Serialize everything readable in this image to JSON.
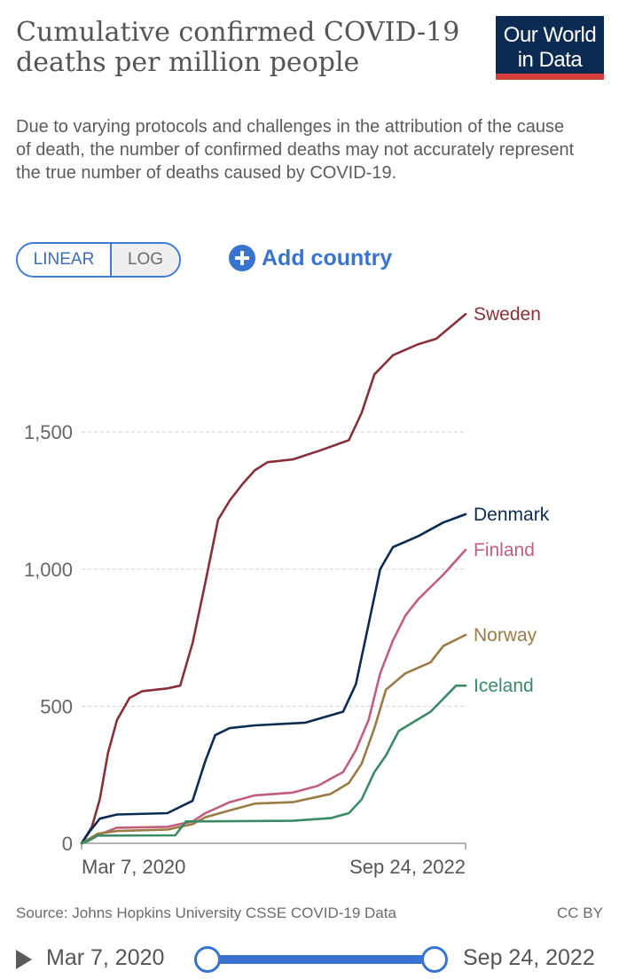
{
  "header": {
    "title": "Cumulative confirmed COVID-19 deaths per million people",
    "subtitle": "Due to varying protocols and challenges in the attribution of the cause of death, the number of confirmed deaths may not accurately represent the true number of deaths caused by COVID-19.",
    "logo_text": "Our World in Data",
    "logo_color": "#0b2b52",
    "logo_accent": "#d1403a"
  },
  "controls": {
    "scale_linear": "LINEAR",
    "scale_log": "LOG",
    "selected_scale": "LINEAR",
    "add_country": "Add country"
  },
  "chart_data": {
    "type": "line",
    "x_start": "Mar 7, 2020",
    "x_end": "Sep 24, 2022",
    "x_ticks": [
      "Mar 7, 2020",
      "Sep 24, 2022"
    ],
    "y_ticks": [
      0,
      500,
      1000,
      1500
    ],
    "y_tick_labels": [
      "0",
      "500",
      "1,000",
      "1,500"
    ],
    "ylim": [
      0,
      1950
    ],
    "grid": "horizontal dashed",
    "legend": "labels at line ends",
    "series": [
      {
        "name": "Sweden",
        "color": "#883039",
        "points": [
          [
            "2020-03-07",
            0
          ],
          [
            "2020-04-01",
            60
          ],
          [
            "2020-04-20",
            160
          ],
          [
            "2020-05-10",
            330
          ],
          [
            "2020-06-01",
            450
          ],
          [
            "2020-07-01",
            530
          ],
          [
            "2020-08-01",
            555
          ],
          [
            "2020-10-01",
            565
          ],
          [
            "2020-11-01",
            575
          ],
          [
            "2020-12-01",
            730
          ],
          [
            "2021-01-01",
            950
          ],
          [
            "2021-02-01",
            1180
          ],
          [
            "2021-03-01",
            1250
          ],
          [
            "2021-04-01",
            1310
          ],
          [
            "2021-05-01",
            1360
          ],
          [
            "2021-06-01",
            1390
          ],
          [
            "2021-08-01",
            1400
          ],
          [
            "2021-10-01",
            1430
          ],
          [
            "2021-12-15",
            1470
          ],
          [
            "2022-01-15",
            1570
          ],
          [
            "2022-02-15",
            1710
          ],
          [
            "2022-04-01",
            1780
          ],
          [
            "2022-06-01",
            1820
          ],
          [
            "2022-07-15",
            1840
          ],
          [
            "2022-09-24",
            1930
          ]
        ]
      },
      {
        "name": "Denmark",
        "color": "#0b2b52",
        "points": [
          [
            "2020-03-07",
            0
          ],
          [
            "2020-03-25",
            40
          ],
          [
            "2020-04-20",
            90
          ],
          [
            "2020-06-01",
            105
          ],
          [
            "2020-10-01",
            110
          ],
          [
            "2020-12-01",
            155
          ],
          [
            "2021-01-01",
            300
          ],
          [
            "2021-01-25",
            395
          ],
          [
            "2021-03-01",
            420
          ],
          [
            "2021-05-01",
            430
          ],
          [
            "2021-09-01",
            440
          ],
          [
            "2021-12-01",
            480
          ],
          [
            "2022-01-01",
            580
          ],
          [
            "2022-02-01",
            800
          ],
          [
            "2022-03-01",
            1000
          ],
          [
            "2022-04-01",
            1080
          ],
          [
            "2022-06-01",
            1120
          ],
          [
            "2022-08-01",
            1170
          ],
          [
            "2022-09-24",
            1200
          ]
        ]
      },
      {
        "name": "Finland",
        "color": "#c25e7a",
        "points": [
          [
            "2020-03-07",
            0
          ],
          [
            "2020-04-15",
            30
          ],
          [
            "2020-06-01",
            57
          ],
          [
            "2020-10-01",
            60
          ],
          [
            "2020-12-01",
            80
          ],
          [
            "2021-01-01",
            110
          ],
          [
            "2021-03-01",
            150
          ],
          [
            "2021-05-01",
            175
          ],
          [
            "2021-08-01",
            185
          ],
          [
            "2021-10-01",
            210
          ],
          [
            "2021-12-01",
            260
          ],
          [
            "2022-01-01",
            340
          ],
          [
            "2022-02-01",
            450
          ],
          [
            "2022-03-01",
            620
          ],
          [
            "2022-04-01",
            740
          ],
          [
            "2022-05-01",
            830
          ],
          [
            "2022-06-01",
            890
          ],
          [
            "2022-08-01",
            980
          ],
          [
            "2022-09-24",
            1070
          ]
        ]
      },
      {
        "name": "Norway",
        "color": "#9a7a45",
        "points": [
          [
            "2020-03-07",
            0
          ],
          [
            "2020-04-15",
            35
          ],
          [
            "2020-06-01",
            45
          ],
          [
            "2020-10-01",
            50
          ],
          [
            "2020-12-01",
            70
          ],
          [
            "2021-01-01",
            95
          ],
          [
            "2021-03-01",
            120
          ],
          [
            "2021-05-01",
            145
          ],
          [
            "2021-08-01",
            150
          ],
          [
            "2021-11-01",
            180
          ],
          [
            "2021-12-15",
            220
          ],
          [
            "2022-01-15",
            290
          ],
          [
            "2022-02-15",
            420
          ],
          [
            "2022-03-15",
            560
          ],
          [
            "2022-05-01",
            620
          ],
          [
            "2022-07-01",
            660
          ],
          [
            "2022-08-01",
            720
          ],
          [
            "2022-09-24",
            760
          ]
        ]
      },
      {
        "name": "Iceland",
        "color": "#3a8a66",
        "points": [
          [
            "2020-03-07",
            0
          ],
          [
            "2020-03-25",
            10
          ],
          [
            "2020-04-15",
            28
          ],
          [
            "2020-10-20",
            29
          ],
          [
            "2020-11-15",
            80
          ],
          [
            "2021-08-01",
            82
          ],
          [
            "2021-11-01",
            92
          ],
          [
            "2021-12-15",
            110
          ],
          [
            "2022-01-15",
            160
          ],
          [
            "2022-02-15",
            260
          ],
          [
            "2022-03-15",
            320
          ],
          [
            "2022-04-15",
            410
          ],
          [
            "2022-07-01",
            480
          ],
          [
            "2022-09-01",
            575
          ],
          [
            "2022-09-24",
            575
          ]
        ]
      }
    ]
  },
  "footer": {
    "source": "Source: Johns Hopkins University CSSE COVID-19 Data",
    "license": "CC BY"
  },
  "timeline": {
    "start": "Mar 7, 2020",
    "end": "Sep 24, 2022",
    "play_icon": "play-icon",
    "color": "#3874cf"
  }
}
